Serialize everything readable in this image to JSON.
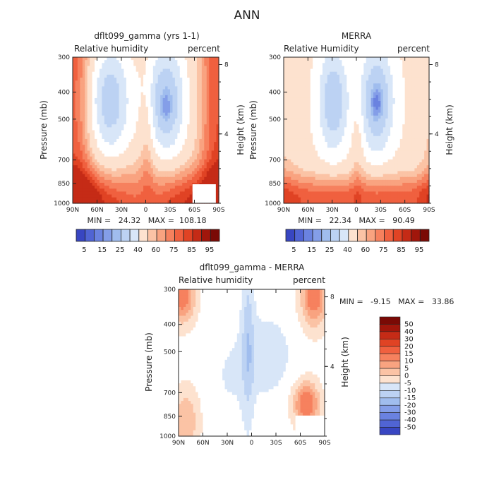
{
  "figure_title": "ANN",
  "colors": {
    "pos": [
      "#ffffff",
      "#fde2cf",
      "#fbc3a5",
      "#f9a380",
      "#f6815e",
      "#f0603f",
      "#e04324",
      "#c52b16",
      "#a0160b",
      "#7a0a05"
    ],
    "neg": [
      "#ffffff",
      "#d8e6f8",
      "#bcd2f3",
      "#a0bdee",
      "#849ee8",
      "#6a82e0",
      "#5064d4",
      "#3846c2",
      "#2430a8",
      "#141c80"
    ]
  },
  "chart_data": [
    {
      "type": "heatmap",
      "title": "dflt099_gamma (yrs 1-1)",
      "left_label": "Relative humidity",
      "right_label": "percent",
      "xlabel": "",
      "ylabel": "Pressure (mb)",
      "y2label": "Height (km)",
      "x_ticks": [
        "90N",
        "60N",
        "30N",
        "0",
        "30S",
        "60S",
        "90S"
      ],
      "y_ticks": [
        "300",
        "400",
        "500",
        "700",
        "850",
        "1000"
      ],
      "y_tick_values": [
        300,
        400,
        500,
        700,
        850,
        1000
      ],
      "y2_ticks": [
        "8",
        "4"
      ],
      "y2_tick_values": [
        8,
        4
      ],
      "min_max_text": "MIN =   24.32   MAX =  108.18",
      "colorbar_labels": [
        "5",
        "15",
        "25",
        "40",
        "60",
        "75",
        "85",
        "95"
      ],
      "colorbar_values": [
        5,
        10,
        15,
        20,
        25,
        30,
        40,
        50,
        60,
        70,
        75,
        80,
        85,
        90,
        95
      ],
      "colorbar_mid": 55,
      "fields": "rh_model"
    },
    {
      "type": "heatmap",
      "title": "MERRA",
      "left_label": "Relative Humidity",
      "right_label": "percent",
      "xlabel": "",
      "ylabel": "Pressure (mb)",
      "y2label": "Height (km)",
      "x_ticks": [
        "90N",
        "60N",
        "30N",
        "0",
        "30S",
        "60S",
        "90S"
      ],
      "y_ticks": [
        "300",
        "400",
        "500",
        "700",
        "850",
        "1000"
      ],
      "y_tick_values": [
        300,
        400,
        500,
        700,
        850,
        1000
      ],
      "y2_ticks": [
        "8",
        "4"
      ],
      "y2_tick_values": [
        8,
        4
      ],
      "min_max_text": "MIN =   22.34   MAX =   90.49",
      "colorbar_labels": [
        "5",
        "15",
        "25",
        "40",
        "60",
        "75",
        "85",
        "95"
      ],
      "colorbar_values": [
        5,
        10,
        15,
        20,
        25,
        30,
        40,
        50,
        60,
        70,
        75,
        80,
        85,
        90,
        95
      ],
      "colorbar_mid": 55,
      "fields": "rh_merra"
    },
    {
      "type": "heatmap",
      "title": "dflt099_gamma - MERRA",
      "left_label": "Relative humidity",
      "right_label": "percent",
      "xlabel": "",
      "ylabel": "Pressure (mb)",
      "y2label": "Height (km)",
      "x_ticks": [
        "90N",
        "60N",
        "30N",
        "0",
        "30S",
        "60S",
        "90S"
      ],
      "y_ticks": [
        "300",
        "400",
        "500",
        "700",
        "850",
        "1000"
      ],
      "y_tick_values": [
        300,
        400,
        500,
        700,
        850,
        1000
      ],
      "y2_ticks": [
        "8",
        "4"
      ],
      "y2_tick_values": [
        8,
        4
      ],
      "min_max_text": "MIN =   -9.15   MAX =   33.86",
      "colorbar_labels": [
        "50",
        "40",
        "30",
        "20",
        "15",
        "10",
        "5",
        "0",
        "-5",
        "-10",
        "-15",
        "-20",
        "-30",
        "-40",
        "-50"
      ],
      "colorbar_values": [
        -50,
        -40,
        -30,
        -20,
        -15,
        -10,
        -5,
        0,
        5,
        10,
        15,
        20,
        30,
        40,
        50
      ],
      "colorbar_mid": 0,
      "fields": "rh_diff"
    }
  ]
}
